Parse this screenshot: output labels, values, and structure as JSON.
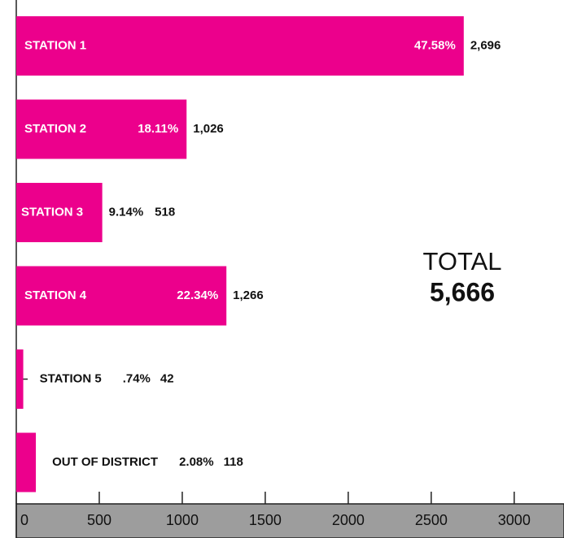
{
  "chart_data": {
    "type": "barh",
    "categories": [
      "STATION 1",
      "STATION 2",
      "STATION 3",
      "STATION 4",
      "STATION 5",
      "OUT OF DISTRICT"
    ],
    "values": [
      2696,
      1026,
      518,
      1266,
      42,
      118
    ],
    "value_labels": [
      "2,696",
      "1,026",
      "518",
      "1,266",
      "42",
      "118"
    ],
    "percent_labels": [
      "47.58%",
      "18.11%",
      "9.14%",
      "22.34%",
      ".74%",
      "2.08%"
    ],
    "color": "#ec008c",
    "xlim": [
      0,
      3300
    ],
    "xticks": [
      0,
      500,
      1000,
      1500,
      2000,
      2500,
      3000
    ],
    "total_label": "TOTAL",
    "total_value": "5,666"
  }
}
